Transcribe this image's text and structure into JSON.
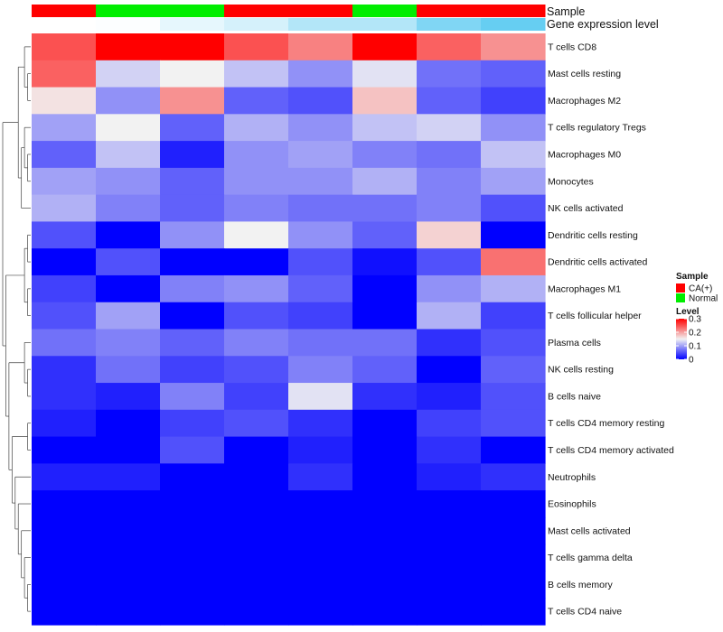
{
  "chart_data": {
    "type": "heatmap",
    "rows": [
      "T cells CD8",
      "Mast cells resting",
      "Macrophages M2",
      "T cells regulatory  Tregs",
      "Macrophages M0",
      "Monocytes",
      "NK cells activated",
      "Dendritic cells resting",
      "Dendritic cells activated",
      "Macrophages M1",
      "T cells follicular helper",
      "Plasma cells",
      "NK cells resting",
      "B cells naive",
      "T cells CD4 memory resting",
      "T cells CD4 memory activated",
      "Neutrophils",
      "Eosinophils",
      "Mast cells activated",
      "T cells gamma delta",
      "B cells memory",
      "T cells CD4 naive"
    ],
    "column_annotations": {
      "sample_label": "Sample",
      "gene_label": "Gene expression level",
      "sample": [
        "CA(+)",
        "Normal",
        "Normal",
        "CA(+)",
        "CA(+)",
        "Normal",
        "CA(+)",
        "CA(+)"
      ],
      "gene_expression_level": [
        0.0,
        0.02,
        0.15,
        0.25,
        0.45,
        0.45,
        0.75,
        0.9
      ]
    },
    "values": [
      [
        0.25,
        0.3,
        0.3,
        0.25,
        0.22,
        0.3,
        0.24,
        0.21
      ],
      [
        0.24,
        0.13,
        0.15,
        0.12,
        0.09,
        0.14,
        0.07,
        0.06
      ],
      [
        0.16,
        0.09,
        0.21,
        0.06,
        0.05,
        0.18,
        0.06,
        0.04
      ],
      [
        0.1,
        0.15,
        0.06,
        0.11,
        0.09,
        0.12,
        0.13,
        0.09
      ],
      [
        0.06,
        0.12,
        0.02,
        0.09,
        0.1,
        0.08,
        0.07,
        0.12
      ],
      [
        0.1,
        0.09,
        0.06,
        0.09,
        0.09,
        0.11,
        0.08,
        0.1
      ],
      [
        0.11,
        0.08,
        0.06,
        0.08,
        0.07,
        0.07,
        0.08,
        0.05
      ],
      [
        0.05,
        0.0,
        0.09,
        0.15,
        0.09,
        0.06,
        0.17,
        0.0
      ],
      [
        0.0,
        0.05,
        0.0,
        0.0,
        0.05,
        0.01,
        0.05,
        0.23
      ],
      [
        0.04,
        0.0,
        0.08,
        0.09,
        0.06,
        0.0,
        0.09,
        0.11
      ],
      [
        0.05,
        0.1,
        0.0,
        0.05,
        0.04,
        0.0,
        0.11,
        0.04
      ],
      [
        0.07,
        0.08,
        0.06,
        0.08,
        0.07,
        0.07,
        0.03,
        0.05
      ],
      [
        0.03,
        0.07,
        0.04,
        0.05,
        0.08,
        0.06,
        0.0,
        0.06
      ],
      [
        0.03,
        0.02,
        0.08,
        0.04,
        0.14,
        0.03,
        0.02,
        0.05
      ],
      [
        0.02,
        0.0,
        0.04,
        0.05,
        0.03,
        0.0,
        0.04,
        0.05
      ],
      [
        0.0,
        0.0,
        0.05,
        0.0,
        0.02,
        0.0,
        0.03,
        0.0
      ],
      [
        0.02,
        0.02,
        0.0,
        0.0,
        0.03,
        0.0,
        0.02,
        0.03
      ],
      [
        0.0,
        0.0,
        0.0,
        0.0,
        0.0,
        0.0,
        0.0,
        0.0
      ],
      [
        0.0,
        0.0,
        0.0,
        0.0,
        0.0,
        0.0,
        0.0,
        0.0
      ],
      [
        0.0,
        0.0,
        0.0,
        0.0,
        0.0,
        0.0,
        0.0,
        0.0
      ],
      [
        0.0,
        0.0,
        0.0,
        0.0,
        0.0,
        0.0,
        0.0,
        0.0
      ],
      [
        0.0,
        0.0,
        0.0,
        0.0,
        0.0,
        0.0,
        0.0,
        0.0
      ]
    ],
    "color_scale": {
      "min": 0,
      "mid": 0.15,
      "max": 0.3,
      "low": "#0000ff",
      "mid_color": "#f2f2f2",
      "high": "#ff0000"
    },
    "legend": {
      "sample_title": "Sample",
      "sample_entries": [
        {
          "label": "CA(+)",
          "color": "#ff0000"
        },
        {
          "label": "Normal",
          "color": "#00ee00"
        }
      ],
      "level_title": "Level",
      "level_ticks": [
        "0.3",
        "0.2",
        "0.1",
        "0"
      ],
      "level_tick_values": [
        0.3,
        0.2,
        0.1,
        0
      ]
    },
    "annotation_colors": {
      "gene_low": "#ffffff",
      "gene_high": "#55c8f0"
    },
    "legend_placement": "right"
  }
}
